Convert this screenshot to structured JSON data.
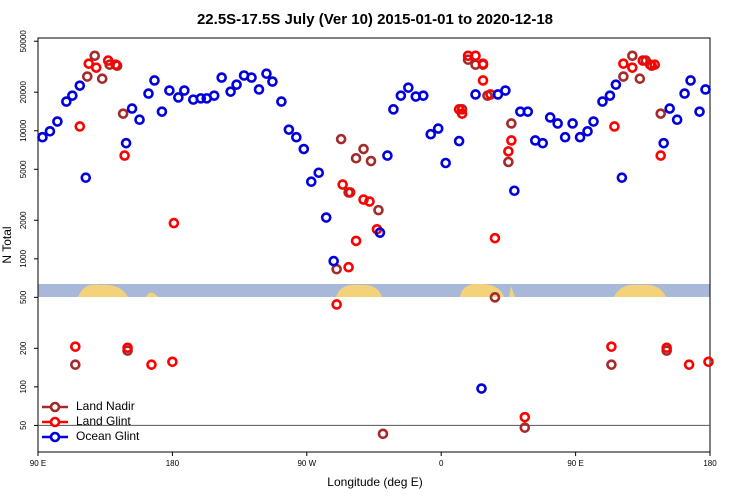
{
  "chart_data": {
    "type": "scatter",
    "title": "22.5S-17.5S July (Ver 10)   2015-01-01 to 2020-12-18",
    "xlabel": "Longitude (deg E)",
    "ylabel": "N Total",
    "xlim": [
      90,
      540
    ],
    "xticks": [
      {
        "value": 90,
        "label": "90 E"
      },
      180,
      {
        "value": 270,
        "label": "90 W"
      },
      {
        "value": 360,
        "label": "0"
      },
      {
        "value": 450,
        "label": "90 E"
      },
      {
        "value": 540,
        "label": "180"
      }
    ],
    "ylim": [
      31,
      53000
    ],
    "log_y": true,
    "yticks": [
      50,
      100,
      200,
      500,
      1000,
      2000,
      5000,
      10000,
      20000,
      50000
    ],
    "hline": 50,
    "legend": "lower left",
    "series": [
      {
        "name": "Land Nadir",
        "color": "#a52a2a",
        "x": [
          115,
          123,
          128,
          133,
          138,
          143,
          147,
          150,
          293,
          290,
          298,
          303,
          308,
          313,
          318,
          321,
          374,
          378,
          383,
          388,
          391,
          396,
          405,
          407,
          416,
          474,
          482,
          488,
          493,
          497,
          501,
          507,
          511
        ],
        "values": [
          149,
          26500,
          38500,
          25500,
          32800,
          32200,
          13600,
          192,
          8600,
          830,
          3300,
          6100,
          7200,
          5800,
          2400,
          43,
          14700,
          35900,
          32800,
          32800,
          18800,
          500,
          5700,
          11400,
          48,
          149,
          26500,
          38500,
          25500,
          35300,
          32200,
          13600,
          192
        ]
      },
      {
        "name": "Land Glint",
        "color": "#ff0000",
        "x": [
          118,
          124,
          129,
          137,
          142,
          148,
          150,
          166,
          180,
          181,
          290,
          294,
          298,
          299,
          303,
          308,
          312,
          317,
          372,
          374,
          378,
          383,
          388,
          388,
          393,
          396,
          405,
          407,
          416,
          476,
          474,
          482,
          488,
          495,
          500,
          503,
          507,
          511,
          526,
          539,
          115
        ],
        "values": [
          10800,
          33400,
          31100,
          35300,
          32800,
          6400,
          202,
          149,
          157,
          1900,
          440,
          3800,
          860,
          3300,
          1380,
          2900,
          2800,
          1700,
          14700,
          13600,
          38500,
          38500,
          33400,
          24700,
          19200,
          1450,
          6900,
          8400,
          58,
          10800,
          206,
          33400,
          31100,
          35300,
          32800,
          32800,
          6400,
          202,
          149,
          157,
          206
        ]
      },
      {
        "name": "Ocean Glint",
        "color": "#0000dd",
        "x": [
          93,
          98,
          103,
          109,
          113,
          118,
          122,
          149,
          153,
          158,
          164,
          168,
          173,
          178,
          184,
          188,
          194,
          199,
          203,
          208,
          213,
          219,
          223,
          228,
          233,
          238,
          243,
          247,
          253,
          258,
          263,
          268,
          273,
          278,
          283,
          288,
          319,
          324,
          328,
          333,
          338,
          343,
          348,
          353,
          358,
          363,
          372,
          383,
          387,
          398,
          403,
          409,
          413,
          418,
          423,
          428,
          433,
          438,
          443,
          448,
          453,
          458,
          462,
          468,
          473,
          477,
          481,
          509,
          513,
          518,
          523,
          527,
          533,
          537
        ],
        "values": [
          8900,
          9900,
          11800,
          16900,
          18800,
          22500,
          4300,
          8000,
          14900,
          12200,
          19500,
          24700,
          14100,
          20600,
          18200,
          20600,
          17500,
          17900,
          17900,
          18800,
          26000,
          20200,
          22900,
          27000,
          26000,
          21000,
          27900,
          24200,
          16900,
          10200,
          8900,
          7200,
          4000,
          4700,
          2100,
          960,
          1600,
          6400,
          14700,
          18800,
          21700,
          18500,
          18800,
          9400,
          10400,
          5600,
          8300,
          19200,
          97,
          19200,
          20600,
          3400,
          14100,
          14100,
          8400,
          8000,
          12700,
          11400,
          8900,
          11400,
          8900,
          9900,
          11800,
          16900,
          18800,
          22900,
          4300,
          8000,
          14900,
          12200,
          19500,
          24700,
          14100,
          21000
        ]
      }
    ]
  }
}
